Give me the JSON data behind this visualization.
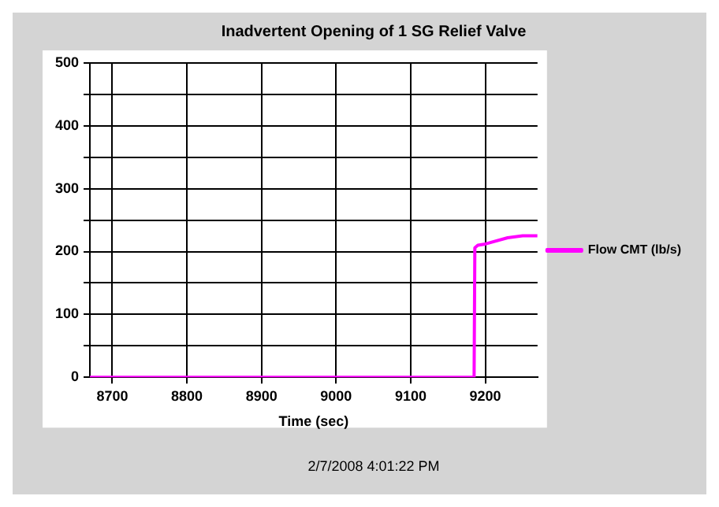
{
  "chart_data": {
    "type": "line",
    "title": "Inadvertent Opening of 1 SG Relief Valve",
    "xlabel": "Time (sec)",
    "annotations": [
      "2/7/2008 4:01:22 PM"
    ],
    "series": [
      {
        "name": "Flow CMT (lb/s)",
        "color": "#ff00ff",
        "x": [
          8670,
          9185,
          9186,
          9190,
          9200,
          9230,
          9250,
          9270
        ],
        "values": [
          0,
          0,
          206,
          210,
          212,
          222,
          225,
          225
        ]
      }
    ],
    "xlim": [
      8670,
      9270
    ],
    "xticks": [
      8700,
      8800,
      8900,
      9000,
      9100,
      9200
    ],
    "ylim": [
      0,
      500
    ],
    "yticks": [
      0,
      {
        "value": 50,
        "label": null
      },
      100,
      {
        "value": 150,
        "label": null
      },
      200,
      {
        "value": 250,
        "label": null
      },
      300,
      {
        "value": 350,
        "label": null
      },
      400,
      {
        "value": 450,
        "label": null
      },
      500
    ],
    "grid": true,
    "legend": "right",
    "marker": "none",
    "line_style": "solid"
  }
}
